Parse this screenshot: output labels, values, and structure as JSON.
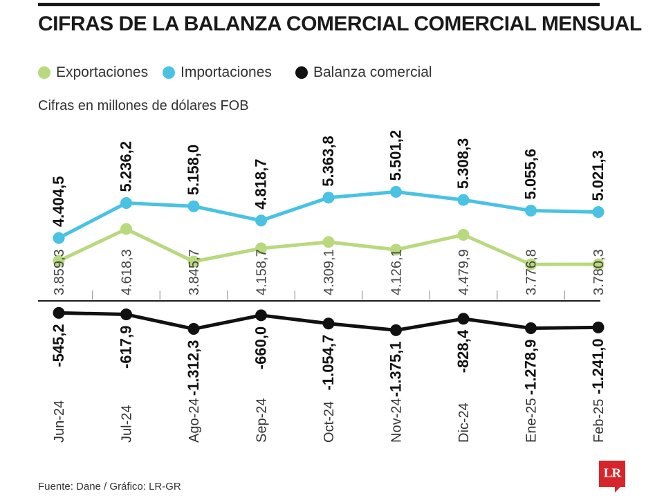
{
  "title": "CIFRAS DE LA BALANZA COMERCIAL COMERCIAL MENSUAL",
  "units_note": "Cifras en millones de dólares FOB",
  "source": "Fuente: Dane / Gráfico: LR-GR",
  "logo_text": "LR",
  "colors": {
    "exportaciones": "#b9d97e",
    "importaciones": "#49c2e3",
    "balanza": "#111111",
    "divider": "#222222",
    "tick": "#999999",
    "logo": "#d6262b"
  },
  "legend": [
    {
      "label": "Exportaciones",
      "color": "#b9d97e"
    },
    {
      "label": "Importaciones",
      "color": "#49c2e3"
    },
    {
      "label": "Balanza comercial",
      "color": "#111111"
    }
  ],
  "chart_data": {
    "type": "line",
    "categories": [
      "Jun-24",
      "Jul-24",
      "Ago-24",
      "Sep-24",
      "Oct-24",
      "Nov-24",
      "Dic-24",
      "Ene-25",
      "Feb-25"
    ],
    "series": [
      {
        "name": "Exportaciones",
        "values": [
          3859.3,
          4618.3,
          3845.7,
          4158.7,
          4309.1,
          4126.1,
          4479.9,
          3776.8,
          3780.3
        ],
        "labels": [
          "3.859,3",
          "4.618,3",
          "3.845,7",
          "4.158,7",
          "4.309,1",
          "4.126,1",
          "4.479,9",
          "3.776,8",
          "3.780,3"
        ]
      },
      {
        "name": "Importaciones",
        "values": [
          4404.5,
          5236.2,
          5158.0,
          4818.7,
          5363.8,
          5501.2,
          5308.3,
          5055.6,
          5021.3
        ],
        "labels": [
          "4.404,5",
          "5.236,2",
          "5.158,0",
          "4.818,7",
          "5.363,8",
          "5.501,2",
          "5.308,3",
          "5.055,6",
          "5.021,3"
        ]
      },
      {
        "name": "Balanza comercial",
        "values": [
          -545.2,
          -617.9,
          -1312.3,
          -660.0,
          -1054.7,
          -1375.1,
          -828.4,
          -1278.9,
          -1241.0
        ],
        "labels": [
          "-545,2",
          "-617,9",
          "-1.312,3",
          "-660,0",
          "-1.054,7",
          "-1.375,1",
          "-828,4",
          "-1.278,9",
          "-1.241,0"
        ]
      }
    ]
  }
}
